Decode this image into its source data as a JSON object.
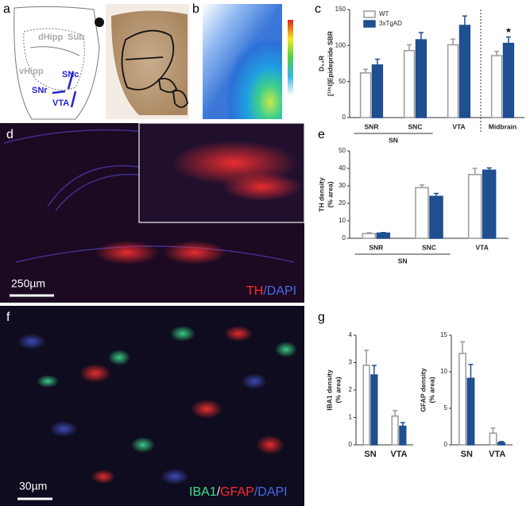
{
  "figure": {
    "panel_labels": [
      "a",
      "b",
      "c",
      "d",
      "e",
      "f",
      "g"
    ],
    "atlas_labels": [
      "dHipp",
      "Sub",
      "vHipp",
      "SNc",
      "SNr",
      "VTA"
    ],
    "scale_bars": [
      "250µm",
      "30µm"
    ],
    "stain_d": [
      "TH",
      "/DAPI"
    ],
    "stain_f": [
      "IBA1",
      "/",
      "GFAP",
      "/DAPI"
    ]
  },
  "chart_data": [
    {
      "type": "bar",
      "categories": [
        "SNR",
        "SNC",
        "VTA",
        "Midbrain"
      ],
      "ylabel": [
        "D₂₃R",
        "[¹²⁵I]Epidepride SBR"
      ],
      "series": [
        {
          "name": "WT",
          "color": "#ffffff",
          "edgecolor": "#9a9a9a",
          "values": [
            62,
            93,
            101,
            86
          ],
          "errors": [
            5,
            8,
            8,
            6
          ]
        },
        {
          "name": "3xTgAD",
          "color": "#1f4e91",
          "edgecolor": "#1f4e91",
          "values": [
            73,
            108,
            128,
            103
          ],
          "errors": [
            8,
            10,
            13,
            9
          ]
        }
      ],
      "ylim": [
        0,
        150
      ],
      "yticks": [
        0,
        50,
        100,
        150
      ],
      "legend": true,
      "dashed_separator": true,
      "group_label": "SN",
      "significance": "★"
    },
    {
      "type": "bar",
      "categories": [
        "SNR",
        "SNC",
        "VTA"
      ],
      "ylabel": [
        "TH density",
        "(% area)"
      ],
      "series": [
        {
          "color": "#ffffff",
          "edgecolor": "#9a9a9a",
          "values": [
            2.7,
            29,
            36.5
          ],
          "errors": [
            0.5,
            1.5,
            3.5
          ]
        },
        {
          "color": "#1f4e91",
          "edgecolor": "#1f4e91",
          "values": [
            3,
            24,
            39
          ],
          "errors": [
            0.3,
            1.7,
            1.3
          ]
        }
      ],
      "ylim": [
        0,
        50
      ],
      "yticks": [
        0,
        10,
        20,
        30,
        40,
        50
      ],
      "group_label": "SN"
    },
    {
      "type": "bar",
      "categories": [
        "SN",
        "VTA"
      ],
      "ylabel": [
        "IBA1 density",
        "(% area)"
      ],
      "series": [
        {
          "color": "#ffffff",
          "edgecolor": "#9a9a9a",
          "values": [
            2.9,
            1.05
          ],
          "errors": [
            0.55,
            0.2
          ]
        },
        {
          "color": "#1f4e91",
          "edgecolor": "#1f4e91",
          "values": [
            2.55,
            0.68
          ],
          "errors": [
            0.35,
            0.13
          ]
        }
      ],
      "ylim": [
        0,
        4
      ],
      "yticks": [
        0,
        1,
        2,
        3,
        4
      ]
    },
    {
      "type": "bar",
      "categories": [
        "SN",
        "VTA"
      ],
      "ylabel": [
        "GFAP density",
        "(% area)"
      ],
      "series": [
        {
          "color": "#ffffff",
          "edgecolor": "#9a9a9a",
          "values": [
            12.5,
            1.6
          ],
          "errors": [
            1.6,
            0.7
          ]
        },
        {
          "color": "#1f4e91",
          "edgecolor": "#1f4e91",
          "values": [
            9.1,
            0.3
          ],
          "errors": [
            1.9,
            0.15
          ]
        }
      ],
      "ylim": [
        0,
        15
      ],
      "yticks": [
        0,
        5,
        10,
        15
      ]
    }
  ]
}
